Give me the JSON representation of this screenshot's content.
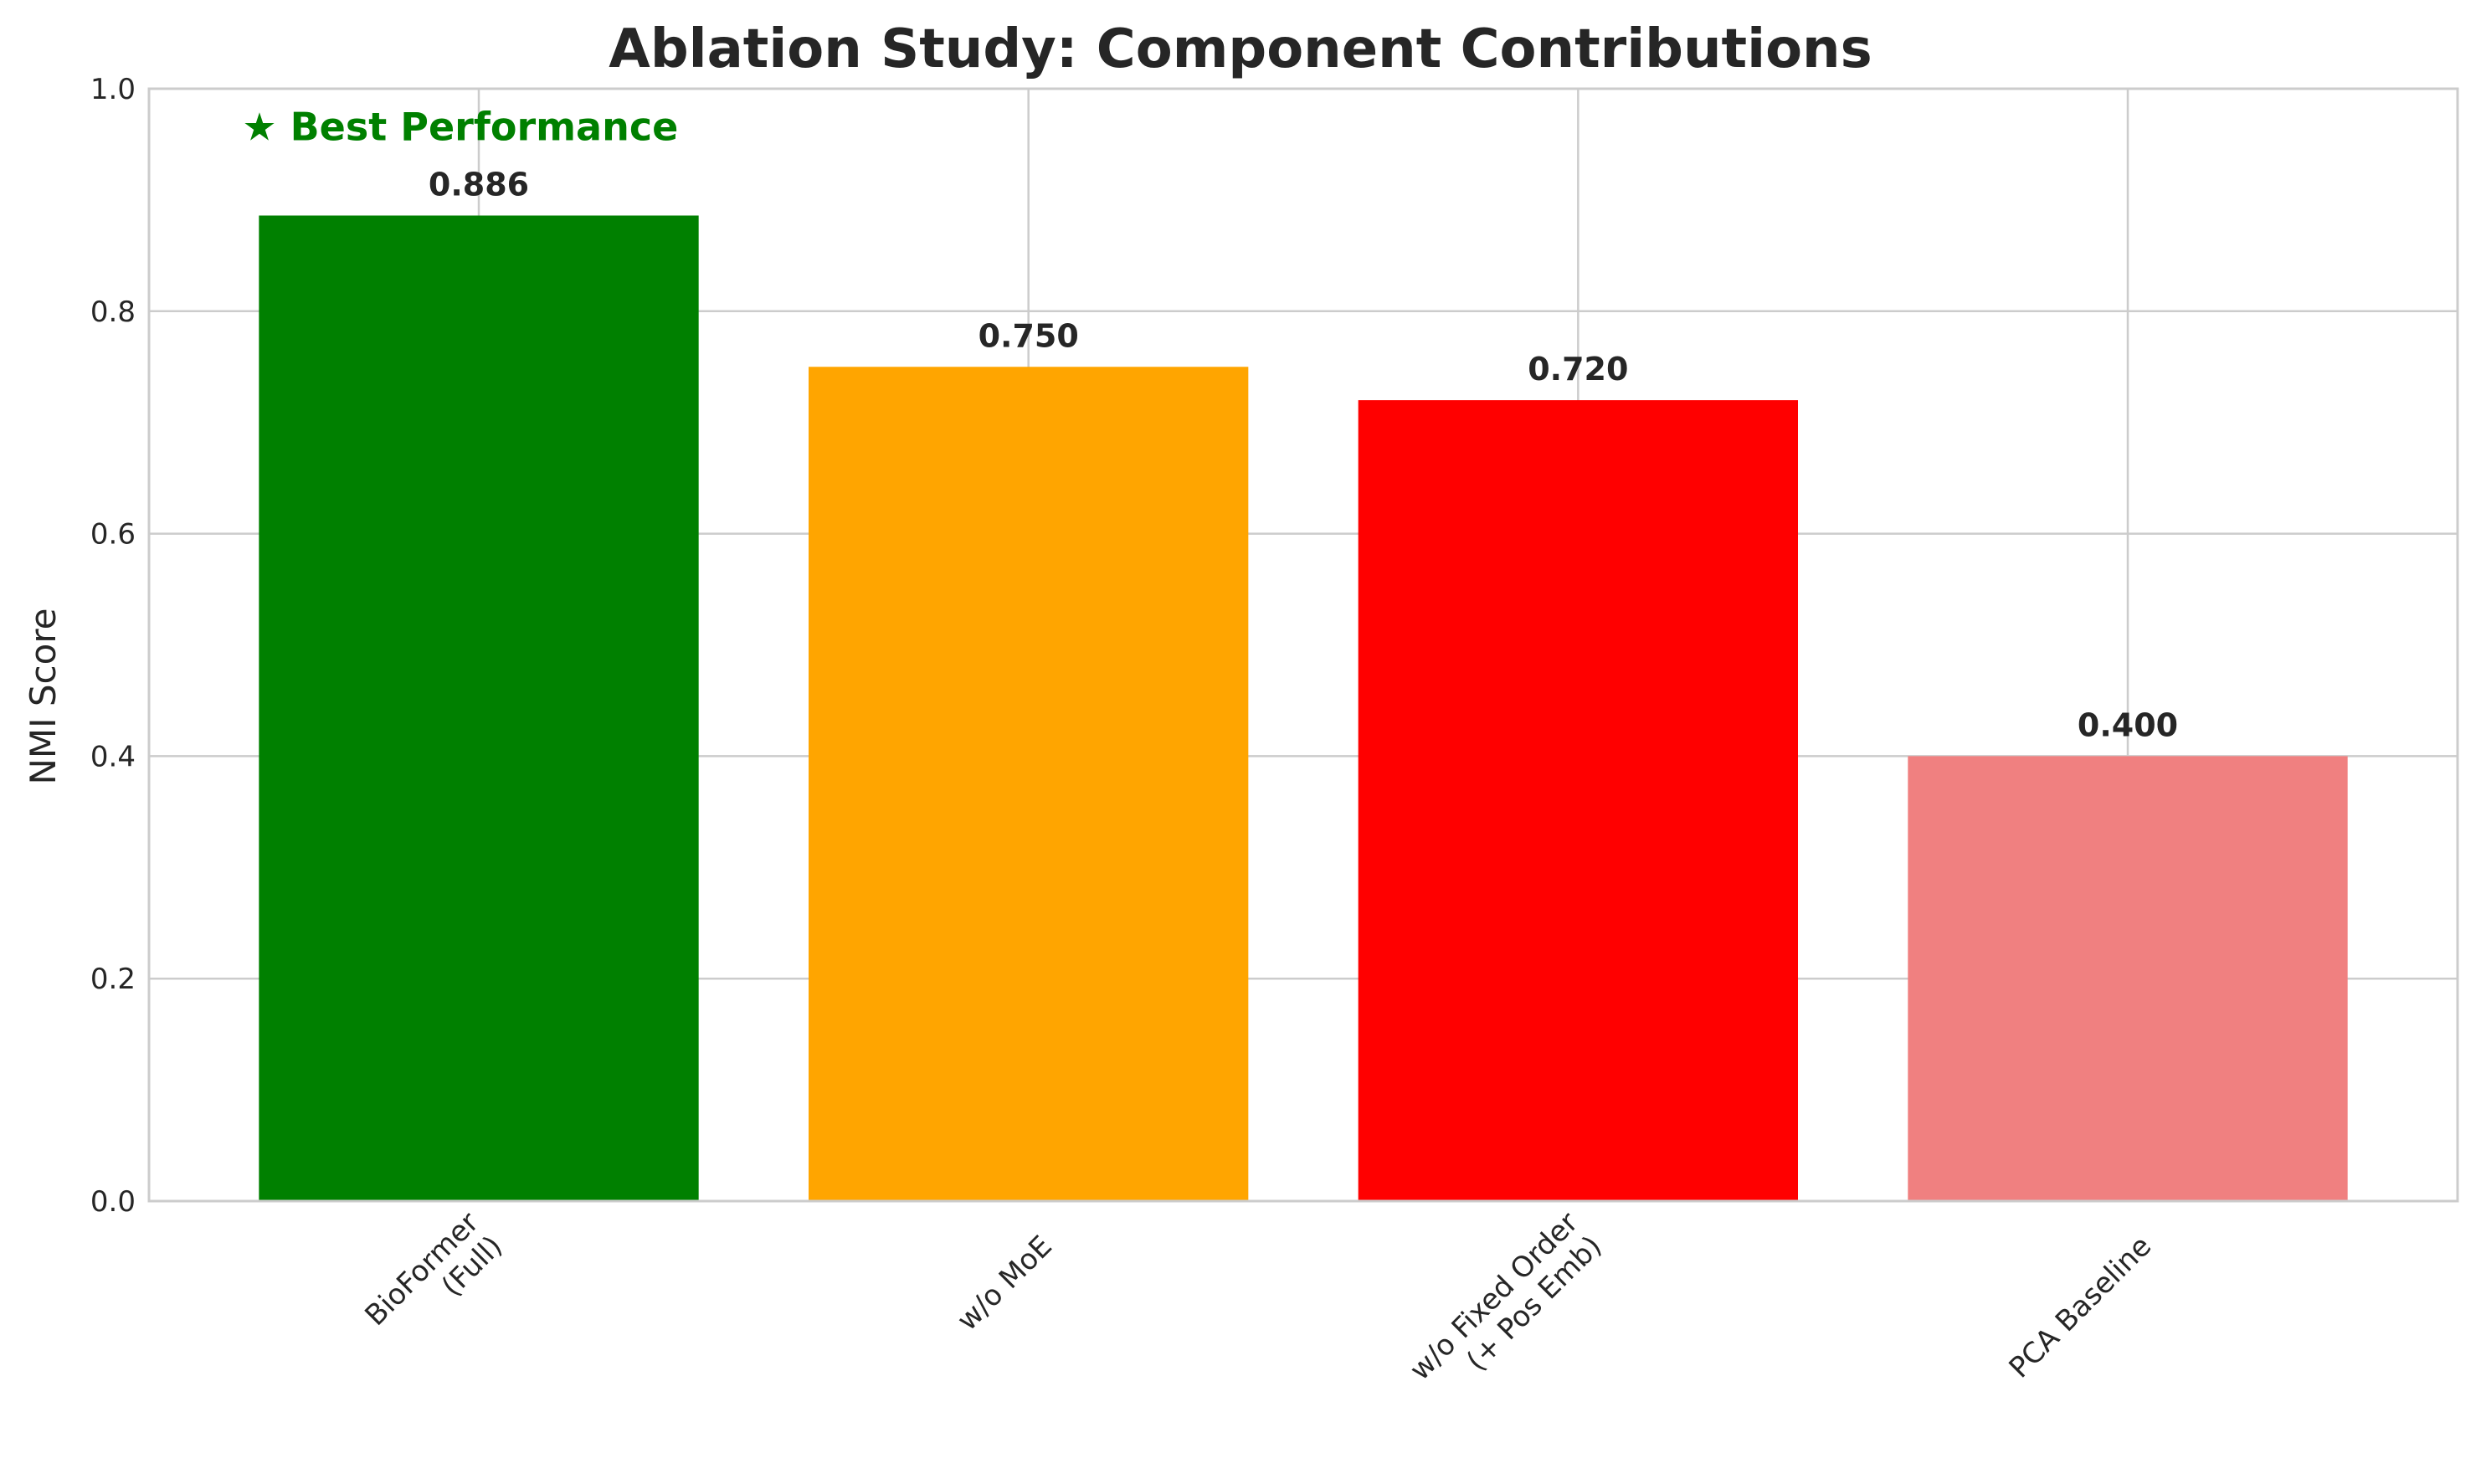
{
  "chart_data": {
    "type": "bar",
    "title": "Ablation Study: Component Contributions",
    "xlabel": "",
    "ylabel": "NMI Score",
    "ylim": [
      0,
      1.0
    ],
    "yticks": [
      "0.0",
      "0.2",
      "0.4",
      "0.6",
      "0.8",
      "1.0"
    ],
    "categories": [
      [
        "BioFormer",
        "(Full)"
      ],
      [
        "w/o MoE"
      ],
      [
        "w/o Fixed Order",
        "(+ Pos Emb)"
      ],
      [
        "PCA Baseline"
      ]
    ],
    "values": [
      0.886,
      0.75,
      0.72,
      0.4
    ],
    "value_labels": [
      "0.886",
      "0.750",
      "0.720",
      "0.400"
    ],
    "colors": [
      "#008000",
      "#ffa500",
      "#ff0000",
      "#f08080"
    ],
    "grid": true,
    "annotation": {
      "text": "★ Best Performance",
      "color": "#008000",
      "bar_index": 0
    }
  }
}
